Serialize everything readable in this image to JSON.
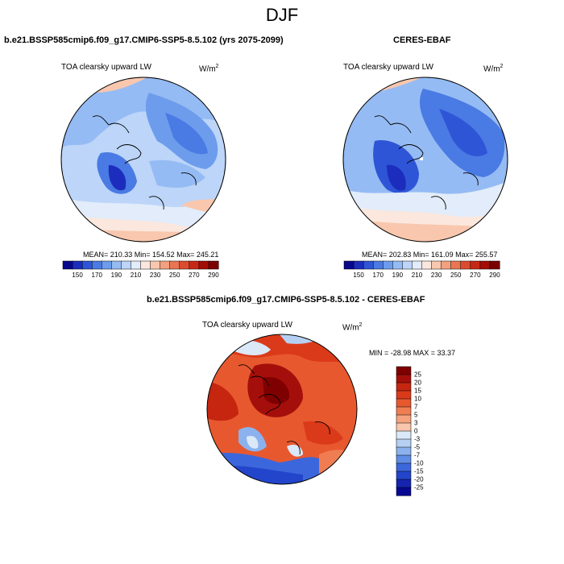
{
  "title": "DJF",
  "panels": [
    {
      "title": "b.e21.BSSP585cmip6.f09_g17.CMIP6-SSP5-8.5.102 (yrs 2075-2099)",
      "variable": "TOA clearsky upward LW",
      "units_base": "W/m",
      "units_exp": "2",
      "stats": "MEAN= 210.33  Min= 154.52  Max= 245.21"
    },
    {
      "title": "CERES-EBAF",
      "variable": "TOA clearsky upward LW",
      "units_base": "W/m",
      "units_exp": "2",
      "stats": "MEAN= 202.83  Min= 161.09  Max= 255.57"
    },
    {
      "title": "b.e21.BSSP585cmip6.f09_g17.CMIP6-SSP5-8.5.102 - CERES-EBAF",
      "variable": "TOA clearsky upward LW",
      "units_base": "W/m",
      "units_exp": "2",
      "stats": "MIN = -28.98 MAX =  33.37"
    }
  ],
  "colorbar_abs": {
    "colors": [
      "#08088c",
      "#1c2dbd",
      "#2f55d7",
      "#4a7ae3",
      "#6d9ced",
      "#95bbf4",
      "#bcd5f8",
      "#e2ecfa",
      "#fbe7dd",
      "#f8c7ae",
      "#f2a07f",
      "#ea7553",
      "#dd4b2f",
      "#c72816",
      "#a30d06",
      "#7c0000"
    ],
    "ticks": [
      "150",
      "170",
      "190",
      "210",
      "230",
      "250",
      "270",
      "290"
    ]
  },
  "colorbar_diff": {
    "colors": [
      "#7f0000",
      "#a50f0b",
      "#c6260f",
      "#db3a1a",
      "#e8582f",
      "#f07d52",
      "#f5a27f",
      "#f9c6ab",
      "#dbe8f7",
      "#b6d0f3",
      "#8bb2ee",
      "#5f8ce5",
      "#3c67dc",
      "#2345cb",
      "#1525b0",
      "#070891"
    ],
    "ticks": [
      "25",
      "20",
      "15",
      "10",
      "7",
      "5",
      "3",
      "0",
      "-3",
      "-5",
      "-7",
      "-10",
      "-15",
      "-20",
      "-25"
    ]
  }
}
